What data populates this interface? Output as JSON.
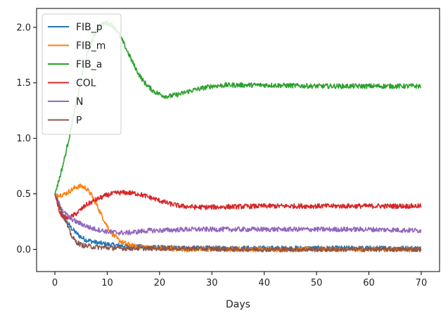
{
  "chart_data": {
    "type": "line",
    "title": "",
    "xlabel": "Days",
    "ylabel": "",
    "xlim": [
      -3.5,
      73.5
    ],
    "ylim": [
      -0.2,
      2.17
    ],
    "xticks": [
      0,
      10,
      20,
      30,
      40,
      50,
      60,
      70
    ],
    "yticks": [
      0.0,
      0.5,
      1.0,
      1.5,
      2.0
    ],
    "ytick_labels": [
      "0.0",
      "0.5",
      "1.0",
      "1.5",
      "2.0"
    ],
    "grid": false,
    "legend": "top-left",
    "noise_amplitude": 0.022,
    "series": [
      {
        "name": "FIB_p",
        "color": "#1f77b4",
        "points": [
          [
            0,
            0.5
          ],
          [
            1,
            0.36
          ],
          [
            2,
            0.27
          ],
          [
            3,
            0.2
          ],
          [
            4,
            0.15
          ],
          [
            5,
            0.11
          ],
          [
            6,
            0.085
          ],
          [
            8,
            0.06
          ],
          [
            10,
            0.045
          ],
          [
            12,
            0.035
          ],
          [
            15,
            0.025
          ],
          [
            20,
            0.015
          ],
          [
            30,
            0.01
          ],
          [
            50,
            0.01
          ],
          [
            70,
            0.01
          ]
        ]
      },
      {
        "name": "FIB_m",
        "color": "#ff7f0e",
        "points": [
          [
            0,
            0.5
          ],
          [
            1,
            0.49
          ],
          [
            2,
            0.5
          ],
          [
            3,
            0.53
          ],
          [
            4,
            0.56
          ],
          [
            5,
            0.57
          ],
          [
            6,
            0.55
          ],
          [
            7,
            0.49
          ],
          [
            8,
            0.4
          ],
          [
            9,
            0.3
          ],
          [
            10,
            0.21
          ],
          [
            11,
            0.14
          ],
          [
            12,
            0.09
          ],
          [
            13,
            0.06
          ],
          [
            15,
            0.03
          ],
          [
            18,
            0.015
          ],
          [
            25,
            0.0
          ],
          [
            70,
            0.0
          ]
        ]
      },
      {
        "name": "FIB_a",
        "color": "#2ca02c",
        "points": [
          [
            0,
            0.5
          ],
          [
            1,
            0.66
          ],
          [
            2,
            0.85
          ],
          [
            3,
            1.07
          ],
          [
            4,
            1.3
          ],
          [
            5,
            1.53
          ],
          [
            6,
            1.72
          ],
          [
            7,
            1.87
          ],
          [
            8,
            1.97
          ],
          [
            9,
            2.03
          ],
          [
            10,
            2.04
          ],
          [
            11,
            2.02
          ],
          [
            12,
            1.96
          ],
          [
            13,
            1.87
          ],
          [
            14,
            1.77
          ],
          [
            15,
            1.67
          ],
          [
            16,
            1.58
          ],
          [
            17,
            1.51
          ],
          [
            18,
            1.46
          ],
          [
            19,
            1.42
          ],
          [
            20,
            1.4
          ],
          [
            21,
            1.38
          ],
          [
            22,
            1.38
          ],
          [
            23,
            1.39
          ],
          [
            24,
            1.4
          ],
          [
            26,
            1.43
          ],
          [
            28,
            1.45
          ],
          [
            30,
            1.47
          ],
          [
            33,
            1.48
          ],
          [
            40,
            1.48
          ],
          [
            50,
            1.47
          ],
          [
            60,
            1.47
          ],
          [
            70,
            1.47
          ]
        ]
      },
      {
        "name": "COL",
        "color": "#d62728",
        "points": [
          [
            0,
            0.5
          ],
          [
            0.5,
            0.4
          ],
          [
            1,
            0.33
          ],
          [
            1.5,
            0.3
          ],
          [
            2,
            0.28
          ],
          [
            3,
            0.29
          ],
          [
            4,
            0.32
          ],
          [
            5,
            0.36
          ],
          [
            6,
            0.4
          ],
          [
            8,
            0.45
          ],
          [
            10,
            0.49
          ],
          [
            12,
            0.51
          ],
          [
            14,
            0.51
          ],
          [
            16,
            0.5
          ],
          [
            18,
            0.47
          ],
          [
            20,
            0.44
          ],
          [
            22,
            0.41
          ],
          [
            24,
            0.39
          ],
          [
            27,
            0.38
          ],
          [
            30,
            0.38
          ],
          [
            40,
            0.39
          ],
          [
            50,
            0.39
          ],
          [
            60,
            0.39
          ],
          [
            70,
            0.39
          ]
        ]
      },
      {
        "name": "N",
        "color": "#9467bd",
        "points": [
          [
            0,
            0.5
          ],
          [
            1,
            0.39
          ],
          [
            2,
            0.32
          ],
          [
            3,
            0.28
          ],
          [
            4,
            0.25
          ],
          [
            5,
            0.23
          ],
          [
            6,
            0.21
          ],
          [
            7,
            0.19
          ],
          [
            8,
            0.18
          ],
          [
            10,
            0.16
          ],
          [
            12,
            0.15
          ],
          [
            14,
            0.15
          ],
          [
            16,
            0.16
          ],
          [
            18,
            0.17
          ],
          [
            20,
            0.17
          ],
          [
            25,
            0.18
          ],
          [
            30,
            0.18
          ],
          [
            40,
            0.18
          ],
          [
            50,
            0.18
          ],
          [
            60,
            0.18
          ],
          [
            70,
            0.17
          ]
        ]
      },
      {
        "name": "P",
        "color": "#8c564b",
        "points": [
          [
            0,
            0.5
          ],
          [
            0.5,
            0.44
          ],
          [
            1,
            0.38
          ],
          [
            1.5,
            0.32
          ],
          [
            2,
            0.26
          ],
          [
            2.5,
            0.2
          ],
          [
            3,
            0.14
          ],
          [
            3.5,
            0.1
          ],
          [
            4,
            0.07
          ],
          [
            5,
            0.04
          ],
          [
            6,
            0.03
          ],
          [
            8,
            0.02
          ],
          [
            12,
            0.01
          ],
          [
            20,
            0.01
          ],
          [
            40,
            0.0
          ],
          [
            70,
            0.0
          ]
        ]
      }
    ]
  }
}
